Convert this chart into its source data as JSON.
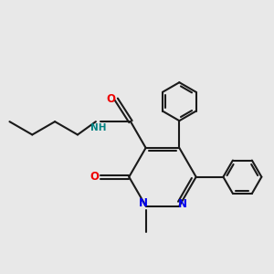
{
  "background_color": "#e8e8e8",
  "line_color": "#1a1a1a",
  "bond_width": 1.5,
  "colors": {
    "N": "#0000ee",
    "O": "#ee0000",
    "NH": "#008080",
    "C": "#1a1a1a"
  }
}
